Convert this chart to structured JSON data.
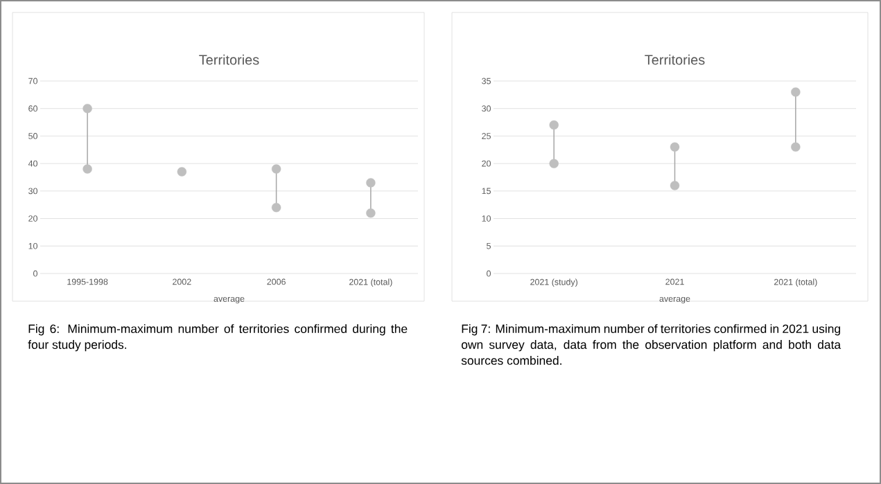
{
  "chart_data": [
    {
      "type": "scatter",
      "title": "Territories",
      "xlabel": "average",
      "categories": [
        "1995-1998",
        "2002",
        "2006",
        "2021 (total)"
      ],
      "ylim": [
        0,
        70
      ],
      "yticks": [
        0,
        10,
        20,
        30,
        40,
        50,
        60,
        70
      ],
      "grid": "y",
      "marker": "circle",
      "series": [
        {
          "color": "#bfbfbf",
          "values": [
            38,
            37,
            24,
            22
          ]
        },
        {
          "color": "#bfbfbf",
          "values": [
            60,
            null,
            38,
            33
          ]
        }
      ],
      "annotations": [
        "Fig 6: Minimum-maximum number of territories confirmed during the four study periods."
      ]
    },
    {
      "type": "scatter",
      "title": "Territories",
      "xlabel": "average",
      "categories": [
        "2021 (study)",
        "2021",
        "2021 (total)"
      ],
      "ylim": [
        0,
        35
      ],
      "yticks": [
        0,
        5,
        10,
        15,
        20,
        25,
        30,
        35
      ],
      "grid": "y",
      "marker": "circle",
      "series": [
        {
          "color": "#bfbfbf",
          "values": [
            20,
            16,
            23
          ]
        },
        {
          "color": "#bfbfbf",
          "values": [
            27,
            23,
            33
          ]
        }
      ],
      "annotations": [
        "Fig 7: Minimum-maximum number of territories confirmed in 2021 using own survey data, data from the observation platform and both data sources combined."
      ]
    }
  ]
}
